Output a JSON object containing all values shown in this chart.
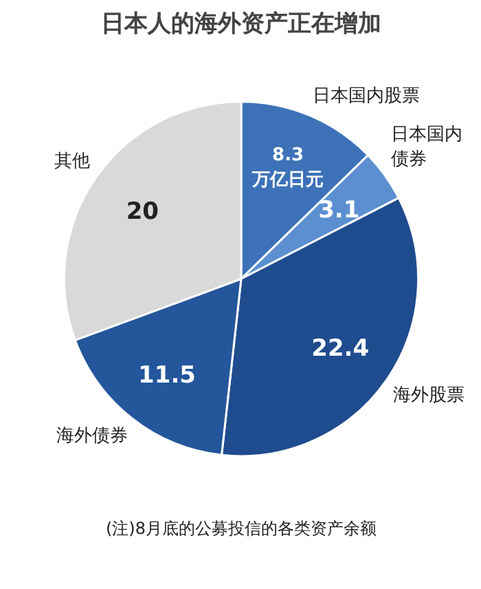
{
  "chart_data": {
    "type": "pie",
    "title": "日本人的海外资产正在增加",
    "categories": [
      "日本国内股票",
      "日本国内债券",
      "海外股票",
      "海外债券",
      "其他"
    ],
    "values": [
      8.3,
      3.1,
      22.4,
      11.5,
      20
    ],
    "colors": [
      "#3d72b8",
      "#5b8fd0",
      "#1f4c8e",
      "#24569b",
      "#d9d9d9"
    ],
    "value_labels": [
      "8.3 万亿日元",
      "3.1",
      "22.4",
      "11.5",
      "20"
    ],
    "annotations": [
      "(注)8月底的公募投信的各类资产余额"
    ]
  }
}
